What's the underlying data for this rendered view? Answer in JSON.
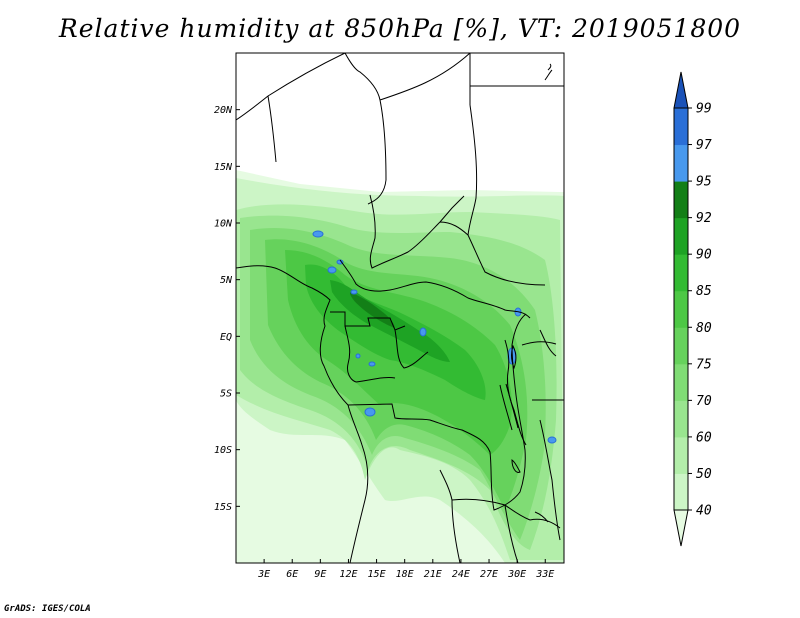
{
  "map": {
    "title": "Relative humidity at 850hPa [%], VT: 2019051800",
    "credit": "GrADS: IGES/COLA",
    "lon_range": [
      0,
      35
    ],
    "lat_range": [
      -20,
      25
    ],
    "lon_ticks": [
      "3E",
      "6E",
      "9E",
      "12E",
      "15E",
      "18E",
      "21E",
      "24E",
      "27E",
      "30E",
      "33E"
    ],
    "lon_tick_values": [
      3,
      6,
      9,
      12,
      15,
      18,
      21,
      24,
      27,
      30,
      33
    ],
    "lat_ticks": [
      "20N",
      "15N",
      "10N",
      "5N",
      "EQ",
      "5S",
      "10S",
      "15S"
    ],
    "lat_tick_values": [
      20,
      15,
      10,
      5,
      0,
      -5,
      -10,
      -15
    ],
    "colorbar": {
      "levels": [
        "40",
        "50",
        "60",
        "70",
        "75",
        "80",
        "85",
        "90",
        "92",
        "95",
        "97",
        "99"
      ],
      "colors": [
        "#e6fbe2",
        "#ccf5c6",
        "#b3eeaa",
        "#99e58f",
        "#80dc75",
        "#66d25c",
        "#4dc845",
        "#33bb33",
        "#1ea324",
        "#137f17",
        "#4899ee",
        "#2a6fd7",
        "#1a52b8"
      ]
    }
  }
}
